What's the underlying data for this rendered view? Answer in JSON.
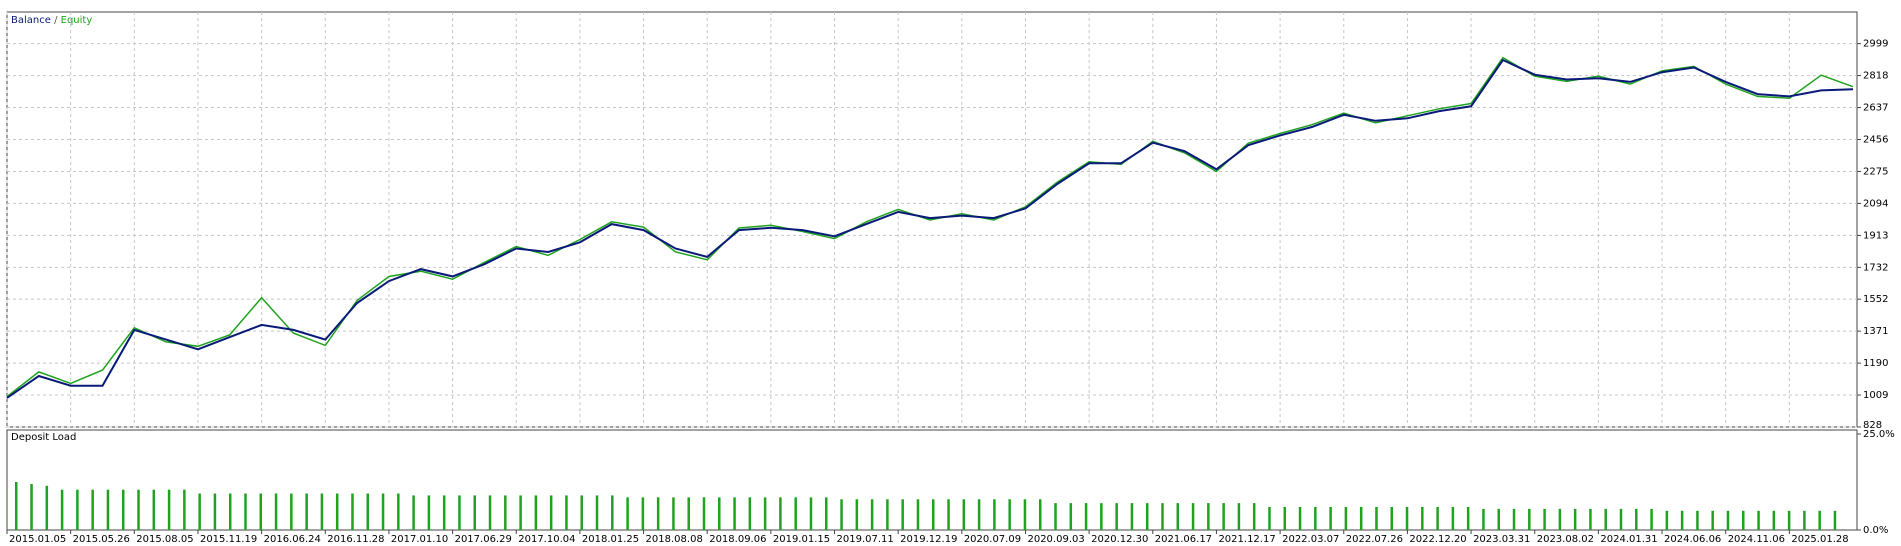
{
  "chart_data": [
    {
      "type": "line",
      "legend_separator": "/",
      "categories": [
        "2015.01.05",
        null,
        "2015.05.26",
        null,
        "2015.08.05",
        null,
        "2015.11.19",
        null,
        "2016.06.24",
        null,
        "2016.11.28",
        null,
        "2017.01.10",
        null,
        "2017.06.29",
        null,
        "2017.10.04",
        null,
        "2018.01.25",
        null,
        "2018.08.08",
        null,
        "2018.09.06",
        null,
        "2019.01.15",
        null,
        "2019.07.11",
        null,
        "2019.12.19",
        null,
        "2020.07.09",
        null,
        "2020.09.03",
        null,
        "2020.12.30",
        null,
        "2021.06.17",
        null,
        "2021.12.17",
        null,
        "2022.03.07",
        null,
        "2022.07.26",
        null,
        "2022.12.20",
        null,
        "2023.03.31",
        null,
        "2023.08.02",
        null,
        "2024.01.31",
        null,
        "2024.06.06",
        null,
        "2024.11.06",
        null,
        "2025.01.28",
        null,
        null
      ],
      "series": [
        {
          "name": "Balance",
          "color": "#0a1a78",
          "values": [
            993,
            1117,
            1062,
            1062,
            1378,
            1323,
            1268,
            1337,
            1406,
            1378,
            1323,
            1530,
            1654,
            1722,
            1681,
            1750,
            1839,
            1819,
            1874,
            1977,
            1943,
            1839,
            1791,
            1943,
            1956,
            1943,
            1908,
            1977,
            2046,
            2011,
            2025,
            2011,
            2066,
            2204,
            2321,
            2321,
            2438,
            2390,
            2287,
            2424,
            2479,
            2527,
            2596,
            2562,
            2576,
            2617,
            2644,
            2906,
            2823,
            2796,
            2803,
            2782,
            2837,
            2864,
            2782,
            2713,
            2700,
            2734,
            2741
          ]
        },
        {
          "name": "Equity",
          "color": "#1fa31f",
          "values": [
            1000,
            1140,
            1075,
            1150,
            1390,
            1310,
            1285,
            1350,
            1560,
            1360,
            1290,
            1545,
            1680,
            1710,
            1665,
            1760,
            1850,
            1800,
            1890,
            1990,
            1960,
            1820,
            1775,
            1955,
            1970,
            1935,
            1895,
            1990,
            2060,
            2000,
            2035,
            2000,
            2075,
            2215,
            2330,
            2315,
            2445,
            2380,
            2275,
            2435,
            2490,
            2540,
            2605,
            2550,
            2590,
            2630,
            2660,
            2920,
            2815,
            2785,
            2815,
            2770,
            2845,
            2870,
            2770,
            2700,
            2690,
            2820,
            2755
          ]
        }
      ],
      "ylim": [
        828,
        3178
      ],
      "yticks": [
        828,
        1009,
        1190,
        1371,
        1552,
        1732,
        1913,
        2094,
        2275,
        2456,
        2637,
        2818,
        2999
      ],
      "grid": true
    },
    {
      "type": "bar",
      "title": "Deposit Load",
      "color": "#1fa31f",
      "values": [
        12.5,
        12,
        11.5,
        10.5,
        10.5,
        10.5,
        10.5,
        10.5,
        10.5,
        10.5,
        10.5,
        10.5,
        9.5,
        9.5,
        9.5,
        9.5,
        9.5,
        9.5,
        9.5,
        9.5,
        9.5,
        9.5,
        9.5,
        9.5,
        9.5,
        9.5,
        9,
        9,
        9,
        9,
        9,
        9,
        9,
        9,
        9,
        9,
        9,
        9,
        9,
        9,
        8.5,
        8.5,
        8.5,
        8.5,
        8.5,
        8.5,
        8.5,
        8.5,
        8.5,
        8.5,
        8.5,
        8.5,
        8.5,
        8.5,
        8,
        8,
        8,
        8,
        8,
        8,
        8,
        8,
        8,
        8,
        8,
        8,
        8,
        8,
        7,
        7,
        7,
        7,
        7,
        7,
        7,
        7,
        7,
        7,
        7,
        7,
        7,
        7,
        6,
        6,
        6,
        6,
        6,
        6,
        6,
        6,
        6,
        6,
        6,
        6,
        6,
        6,
        5.5,
        5.5,
        5.5,
        5.5,
        5.5,
        5.5,
        5.5,
        5.5,
        5.5,
        5.5,
        5.5,
        5.5,
        5,
        5,
        5,
        5,
        5,
        5,
        5,
        5,
        5,
        5,
        5,
        5
      ],
      "ylim": [
        0,
        25
      ],
      "yticks": [
        {
          "value": 0,
          "label": "0.0%"
        },
        {
          "value": 25,
          "label": "25.0%"
        }
      ]
    }
  ]
}
